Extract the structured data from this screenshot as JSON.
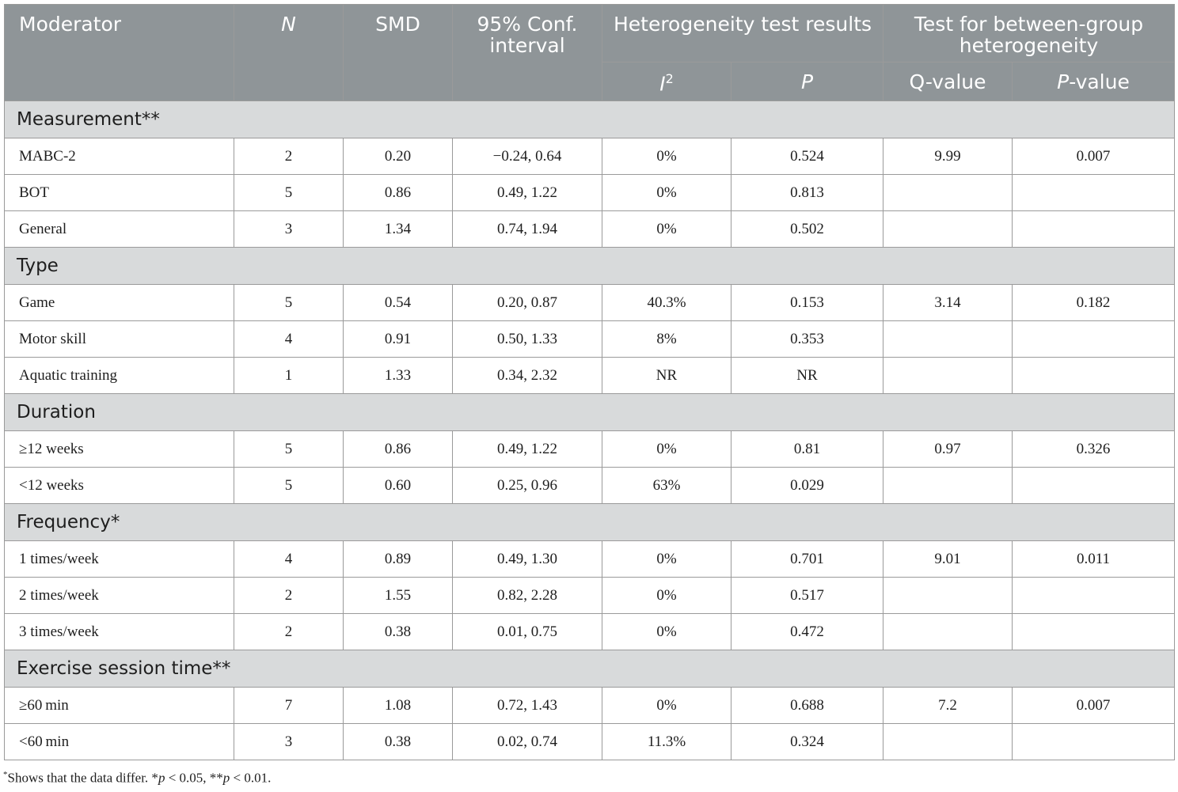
{
  "header": {
    "moderator": "Moderator",
    "n": "N",
    "smd": "SMD",
    "ci_line1": "95% Conf.",
    "ci_line2": "interval",
    "heterogeneity": "Heterogeneity test results",
    "between_line1": "Test for between-group",
    "between_line2": "heterogeneity",
    "i_sym": "I",
    "i_sup": "2",
    "p": "P",
    "q_value": "Q-value",
    "p_value_italic": "P",
    "p_value_rest": "-value"
  },
  "sections": [
    {
      "title": "Measurement**",
      "rows": [
        {
          "label": "MABC-2",
          "n": "2",
          "smd": "0.20",
          "ci": "−0.24, 0.64",
          "i2": "0%",
          "p": "0.524",
          "q": "9.99",
          "pval": "0.007"
        },
        {
          "label": "BOT",
          "n": "5",
          "smd": "0.86",
          "ci": "0.49, 1.22",
          "i2": "0%",
          "p": "0.813",
          "q": "",
          "pval": ""
        },
        {
          "label": "General",
          "n": "3",
          "smd": "1.34",
          "ci": "0.74, 1.94",
          "i2": "0%",
          "p": "0.502",
          "q": "",
          "pval": ""
        }
      ]
    },
    {
      "title": "Type",
      "rows": [
        {
          "label": "Game",
          "n": "5",
          "smd": "0.54",
          "ci": "0.20, 0.87",
          "i2": "40.3%",
          "p": "0.153",
          "q": "3.14",
          "pval": "0.182"
        },
        {
          "label": "Motor skill",
          "n": "4",
          "smd": "0.91",
          "ci": "0.50, 1.33",
          "i2": "8%",
          "p": "0.353",
          "q": "",
          "pval": ""
        },
        {
          "label": "Aquatic training",
          "n": "1",
          "smd": "1.33",
          "ci": "0.34, 2.32",
          "i2": "NR",
          "p": "NR",
          "q": "",
          "pval": ""
        }
      ]
    },
    {
      "title": "Duration",
      "rows": [
        {
          "label": "≥12 weeks",
          "n": "5",
          "smd": "0.86",
          "ci": "0.49, 1.22",
          "i2": "0%",
          "p": "0.81",
          "q": "0.97",
          "pval": "0.326"
        },
        {
          "label": "<12 weeks",
          "n": "5",
          "smd": "0.60",
          "ci": "0.25, 0.96",
          "i2": "63%",
          "p": "0.029",
          "q": "",
          "pval": ""
        }
      ]
    },
    {
      "title": "Frequency*",
      "rows": [
        {
          "label": "1 times/week",
          "n": "4",
          "smd": "0.89",
          "ci": "0.49, 1.30",
          "i2": "0%",
          "p": "0.701",
          "q": "9.01",
          "pval": "0.011"
        },
        {
          "label": "2 times/week",
          "n": "2",
          "smd": "1.55",
          "ci": "0.82, 2.28",
          "i2": "0%",
          "p": "0.517",
          "q": "",
          "pval": ""
        },
        {
          "label": "3 times/week",
          "n": "2",
          "smd": "0.38",
          "ci": "0.01, 0.75",
          "i2": "0%",
          "p": "0.472",
          "q": "",
          "pval": ""
        }
      ]
    },
    {
      "title": "Exercise session time**",
      "rows": [
        {
          "label": "≥60 min",
          "n": "7",
          "smd": "1.08",
          "ci": "0.72, 1.43",
          "i2": "0%",
          "p": "0.688",
          "q": "7.2",
          "pval": "0.007"
        },
        {
          "label": "<60 min",
          "n": "3",
          "smd": "0.38",
          "ci": "0.02, 0.74",
          "i2": "11.3%",
          "p": "0.324",
          "q": "",
          "pval": ""
        }
      ]
    }
  ],
  "footnote": {
    "star": "*",
    "text1": "Shows that the data differ. *",
    "p1": "p",
    "text2": " < 0.05, **",
    "p2": "p",
    "text3": " < 0.01."
  }
}
